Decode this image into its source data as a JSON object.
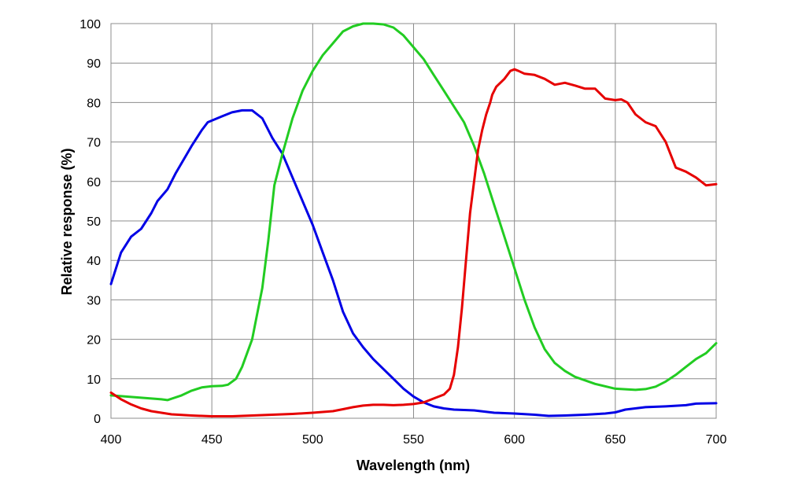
{
  "chart_data": {
    "type": "line",
    "title": "",
    "xlabel": "Wavelength (nm)",
    "ylabel": "Relative response (%)",
    "xlim": [
      400,
      700
    ],
    "ylim": [
      0,
      100
    ],
    "xticks": [
      "400",
      "450",
      "500",
      "550",
      "600",
      "650",
      "700"
    ],
    "yticks": [
      "0",
      "10",
      "20",
      "30",
      "40",
      "50",
      "60",
      "70",
      "80",
      "90",
      "100"
    ],
    "grid": true,
    "legend": "none",
    "series": [
      {
        "color": "#0000e6",
        "points": [
          [
            400,
            34
          ],
          [
            405,
            42
          ],
          [
            410,
            46
          ],
          [
            415,
            48
          ],
          [
            420,
            52
          ],
          [
            423,
            55
          ],
          [
            428,
            58
          ],
          [
            432,
            62
          ],
          [
            440,
            69
          ],
          [
            445,
            73
          ],
          [
            448,
            75
          ],
          [
            455,
            76.5
          ],
          [
            460,
            77.5
          ],
          [
            465,
            78
          ],
          [
            470,
            78
          ],
          [
            475,
            76
          ],
          [
            480,
            71
          ],
          [
            485,
            67
          ],
          [
            490,
            61
          ],
          [
            495,
            55
          ],
          [
            500,
            49
          ],
          [
            505,
            42
          ],
          [
            510,
            35
          ],
          [
            515,
            27
          ],
          [
            520,
            21.5
          ],
          [
            525,
            18
          ],
          [
            530,
            15
          ],
          [
            535,
            12.5
          ],
          [
            540,
            10
          ],
          [
            545,
            7.5
          ],
          [
            550,
            5.5
          ],
          [
            555,
            4
          ],
          [
            560,
            3
          ],
          [
            565,
            2.5
          ],
          [
            570,
            2.2
          ],
          [
            580,
            2
          ],
          [
            590,
            1.4
          ],
          [
            600,
            1.2
          ],
          [
            610,
            0.9
          ],
          [
            617,
            0.6
          ],
          [
            625,
            0.7
          ],
          [
            635,
            0.9
          ],
          [
            645,
            1.2
          ],
          [
            650,
            1.5
          ],
          [
            655,
            2.2
          ],
          [
            665,
            2.8
          ],
          [
            675,
            3
          ],
          [
            685,
            3.3
          ],
          [
            690,
            3.7
          ],
          [
            700,
            3.8
          ]
        ]
      },
      {
        "color": "#22cc22",
        "points": [
          [
            400,
            5.8
          ],
          [
            405,
            5.6
          ],
          [
            410,
            5.4
          ],
          [
            415,
            5.2
          ],
          [
            420,
            5
          ],
          [
            425,
            4.8
          ],
          [
            428,
            4.6
          ],
          [
            435,
            5.8
          ],
          [
            440,
            7
          ],
          [
            445,
            7.8
          ],
          [
            450,
            8.1
          ],
          [
            455,
            8.2
          ],
          [
            458,
            8.5
          ],
          [
            462,
            10
          ],
          [
            465,
            13
          ],
          [
            470,
            20
          ],
          [
            475,
            33
          ],
          [
            478,
            45
          ],
          [
            481,
            59
          ],
          [
            485,
            67
          ],
          [
            490,
            76
          ],
          [
            495,
            83
          ],
          [
            500,
            88
          ],
          [
            505,
            92
          ],
          [
            510,
            95
          ],
          [
            515,
            98
          ],
          [
            520,
            99.3
          ],
          [
            525,
            100
          ],
          [
            530,
            100
          ],
          [
            535,
            99.8
          ],
          [
            540,
            99
          ],
          [
            545,
            97
          ],
          [
            550,
            94
          ],
          [
            555,
            91
          ],
          [
            560,
            87
          ],
          [
            565,
            83
          ],
          [
            570,
            79
          ],
          [
            575,
            75
          ],
          [
            580,
            69
          ],
          [
            585,
            62
          ],
          [
            590,
            54
          ],
          [
            595,
            46
          ],
          [
            600,
            38
          ],
          [
            605,
            30
          ],
          [
            610,
            23
          ],
          [
            615,
            17.5
          ],
          [
            620,
            14
          ],
          [
            625,
            12
          ],
          [
            630,
            10.5
          ],
          [
            640,
            8.7
          ],
          [
            650,
            7.5
          ],
          [
            660,
            7.2
          ],
          [
            665,
            7.4
          ],
          [
            670,
            8
          ],
          [
            675,
            9.3
          ],
          [
            680,
            11
          ],
          [
            685,
            13
          ],
          [
            690,
            15
          ],
          [
            695,
            16.5
          ],
          [
            700,
            19
          ]
        ]
      },
      {
        "color": "#e60000",
        "points": [
          [
            400,
            6.5
          ],
          [
            405,
            4.8
          ],
          [
            410,
            3.5
          ],
          [
            415,
            2.5
          ],
          [
            420,
            1.8
          ],
          [
            425,
            1.4
          ],
          [
            430,
            1
          ],
          [
            440,
            0.7
          ],
          [
            450,
            0.5
          ],
          [
            460,
            0.5
          ],
          [
            470,
            0.7
          ],
          [
            480,
            0.9
          ],
          [
            490,
            1.1
          ],
          [
            500,
            1.4
          ],
          [
            510,
            1.8
          ],
          [
            515,
            2.3
          ],
          [
            520,
            2.8
          ],
          [
            525,
            3.2
          ],
          [
            530,
            3.4
          ],
          [
            535,
            3.4
          ],
          [
            540,
            3.3
          ],
          [
            545,
            3.4
          ],
          [
            550,
            3.6
          ],
          [
            555,
            4
          ],
          [
            560,
            5
          ],
          [
            565,
            6
          ],
          [
            568,
            7.5
          ],
          [
            570,
            11
          ],
          [
            572,
            18
          ],
          [
            574,
            28
          ],
          [
            576,
            40
          ],
          [
            578,
            52
          ],
          [
            580,
            60
          ],
          [
            582,
            68
          ],
          [
            584,
            73
          ],
          [
            586,
            77
          ],
          [
            588,
            80
          ],
          [
            589,
            82
          ],
          [
            591,
            84
          ],
          [
            595,
            86
          ],
          [
            598,
            88
          ],
          [
            600,
            88.4
          ],
          [
            602,
            88
          ],
          [
            605,
            87.3
          ],
          [
            610,
            87
          ],
          [
            615,
            86
          ],
          [
            620,
            84.5
          ],
          [
            625,
            85
          ],
          [
            630,
            84.3
          ],
          [
            635,
            83.5
          ],
          [
            640,
            83.5
          ],
          [
            645,
            81
          ],
          [
            650,
            80.6
          ],
          [
            653,
            80.8
          ],
          [
            656,
            80
          ],
          [
            660,
            77
          ],
          [
            665,
            75
          ],
          [
            670,
            74
          ],
          [
            675,
            70
          ],
          [
            680,
            63.5
          ],
          [
            685,
            62.5
          ],
          [
            690,
            61
          ],
          [
            695,
            59
          ],
          [
            700,
            59.3
          ]
        ]
      }
    ]
  }
}
